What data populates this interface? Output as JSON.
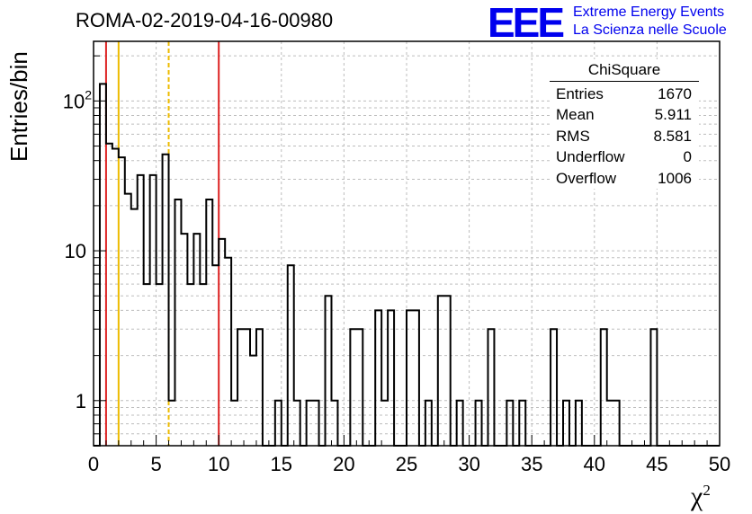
{
  "header": {
    "run_title": "ROMA-02-2019-04-16-00980",
    "logo_mark": "EEE",
    "logo_line1": "Extreme Energy Events",
    "logo_line2": "La Scienza nelle Scuole"
  },
  "stats_box": {
    "title": "ChiSquare",
    "rows": [
      {
        "label": "Entries",
        "value": "1670"
      },
      {
        "label": "Mean",
        "value": "5.911"
      },
      {
        "label": "RMS",
        "value": "8.581"
      },
      {
        "label": "Underflow",
        "value": "0"
      },
      {
        "label": "Overflow",
        "value": "1006"
      }
    ]
  },
  "chart_data": {
    "type": "bar",
    "histogram": true,
    "xlabel": "χ²",
    "ylabel": "Entries/bin",
    "xlim": [
      0,
      50
    ],
    "ylim": [
      0.5,
      250
    ],
    "log_y": true,
    "grid": true,
    "bin_width": 0.5,
    "x_ticks": [
      0,
      5,
      10,
      15,
      20,
      25,
      30,
      35,
      40,
      45,
      50
    ],
    "y_tick_labels": [
      {
        "value": 1,
        "label": "1"
      },
      {
        "value": 10,
        "label": "10"
      },
      {
        "value": 100,
        "label": "10²"
      }
    ],
    "values": [
      0,
      130,
      52,
      48,
      42,
      24,
      19,
      32,
      6,
      32,
      6,
      44,
      1,
      22,
      13,
      6,
      13,
      6,
      22,
      8,
      12,
      9,
      1,
      3,
      3,
      2,
      3,
      0,
      0,
      1,
      0,
      8,
      1,
      0,
      1,
      1,
      0,
      5,
      1,
      0,
      0,
      3,
      3,
      0,
      0,
      4,
      1,
      4,
      0,
      0,
      4,
      4,
      0,
      1,
      0,
      5,
      5,
      0,
      1,
      0,
      0,
      1,
      0,
      3,
      0,
      0,
      1,
      0,
      1,
      0,
      0,
      0,
      0,
      3,
      0,
      1,
      0,
      1,
      0,
      0,
      0,
      3,
      1,
      1,
      0,
      0,
      0,
      0,
      0,
      3,
      0,
      0,
      0,
      0,
      0,
      0,
      0,
      0,
      0,
      0
    ],
    "vertical_lines": [
      {
        "x": 1,
        "color": "#dd2222",
        "style": "solid"
      },
      {
        "x": 2,
        "color": "#eebb00",
        "style": "solid"
      },
      {
        "x": 6,
        "color": "#eebb00",
        "style": "dashed"
      },
      {
        "x": 10,
        "color": "#dd2222",
        "style": "solid"
      }
    ]
  }
}
